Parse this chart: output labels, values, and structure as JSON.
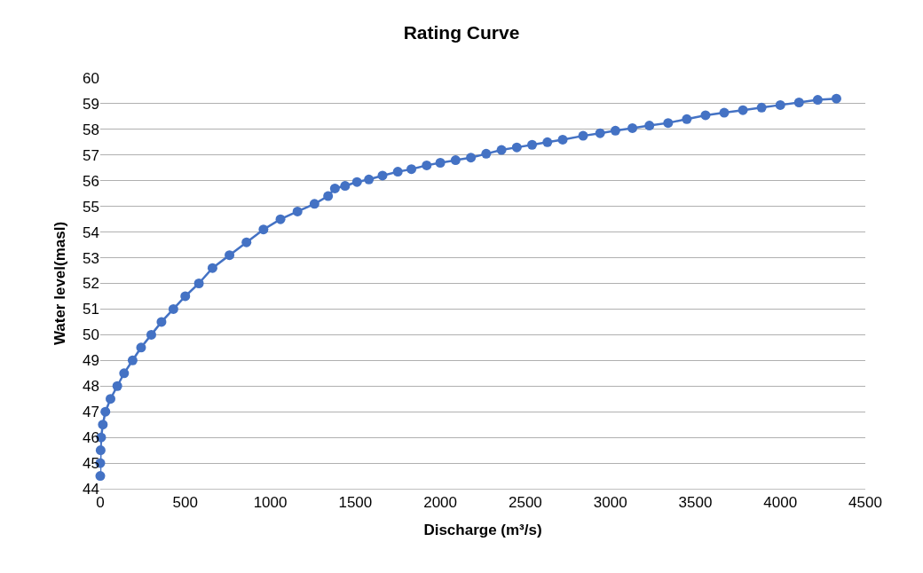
{
  "chart_data": {
    "type": "line",
    "title": "Rating Curve",
    "xlabel": "Discharge (m³/s)",
    "ylabel": "Water level(masl)",
    "x": [
      0,
      0,
      2,
      5,
      15,
      30,
      60,
      100,
      140,
      190,
      240,
      300,
      360,
      430,
      500,
      580,
      660,
      760,
      860,
      960,
      1060,
      1160,
      1260,
      1340,
      1380,
      1440,
      1510,
      1580,
      1660,
      1750,
      1830,
      1920,
      2000,
      2090,
      2180,
      2270,
      2360,
      2450,
      2540,
      2630,
      2720,
      2840,
      2940,
      3030,
      3130,
      3230,
      3340,
      3450,
      3560,
      3670,
      3780,
      3890,
      4000,
      4110,
      4220,
      4330
    ],
    "series": [
      {
        "color": "#4472c4",
        "values": [
          44.5,
          45,
          45.5,
          46,
          46.5,
          47,
          47.5,
          48,
          48.5,
          49,
          49.5,
          50,
          50.5,
          51,
          51.5,
          52,
          52.6,
          53.1,
          53.6,
          54.1,
          54.5,
          54.8,
          55.1,
          55.4,
          55.7,
          55.8,
          55.95,
          56.05,
          56.2,
          56.35,
          56.45,
          56.6,
          56.7,
          56.8,
          56.9,
          57.05,
          57.2,
          57.3,
          57.4,
          57.5,
          57.6,
          57.75,
          57.85,
          57.95,
          58.05,
          58.15,
          58.25,
          58.4,
          58.55,
          58.65,
          58.75,
          58.85,
          58.95,
          59.05,
          59.15,
          59.2
        ]
      }
    ],
    "xlim": [
      0,
      4500
    ],
    "xticks": [
      0,
      500,
      1000,
      1500,
      2000,
      2500,
      3000,
      3500,
      4000,
      4500
    ],
    "ylim": [
      44,
      60
    ],
    "yticks": [
      44,
      45,
      46,
      47,
      48,
      49,
      50,
      51,
      52,
      53,
      54,
      55,
      56,
      57,
      58,
      59,
      60
    ],
    "grid": "y",
    "legend": false,
    "marker": "circle",
    "line_style": "solid"
  }
}
